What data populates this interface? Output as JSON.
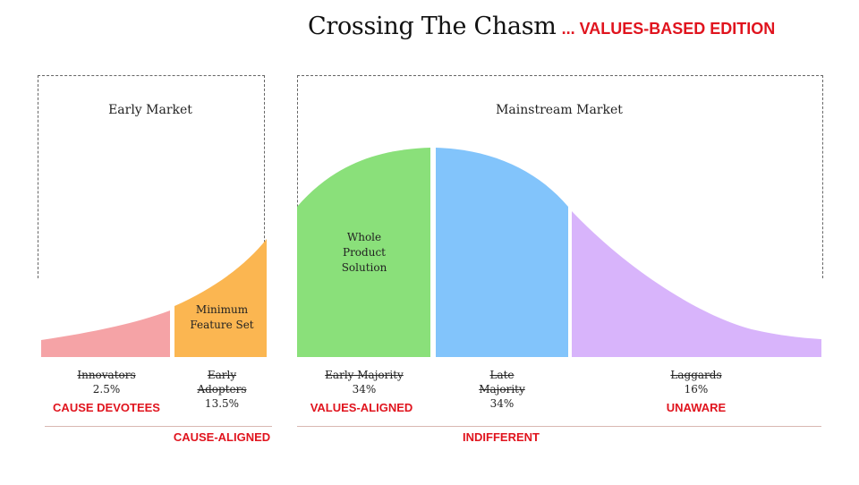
{
  "title": {
    "main": "Crossing The Chasm",
    "sub": "... VALUES-BASED EDITION"
  },
  "markets": {
    "early": "Early Market",
    "mainstream": "Mainstream Market"
  },
  "segments": {
    "minimum_feature_set": "Minimum Feature Set",
    "whole_product_solution": "Whole Product Solution"
  },
  "categories": [
    {
      "name": "Innovators",
      "pct": "2.5%"
    },
    {
      "name_line1": "Early",
      "name_line2": "Adopters",
      "pct": "13.5%"
    },
    {
      "name": "Early Majority",
      "pct": "34%"
    },
    {
      "name_line1": "Late",
      "name_line2": "Majority",
      "pct": "34%"
    },
    {
      "name": "Laggards",
      "pct": "16%"
    }
  ],
  "value_labels": {
    "cause_devotees": "CAUSE DEVOTEES",
    "cause_aligned": "CAUSE-ALIGNED",
    "values_aligned": "VALUES-ALIGNED",
    "indifferent": "INDIFFERENT",
    "unaware": "UNAWARE"
  },
  "colors": {
    "innovators": "#f5a3a6",
    "early_adopters": "#fbb651",
    "early_majority": "#8ae07a",
    "late_majority": "#82c4fb",
    "laggards": "#d8b4fb",
    "accent_red": "#e0141e"
  }
}
